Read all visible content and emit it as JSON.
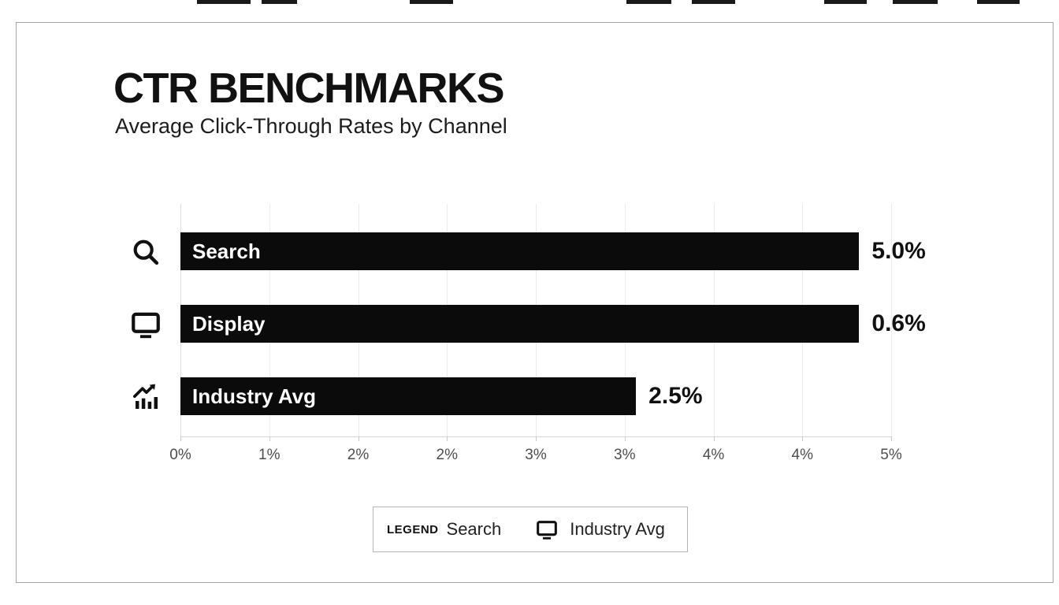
{
  "header": {
    "title": "CTR BENCHMARKS",
    "subtitle": "Average Click-Through Rates by Channel"
  },
  "chart_data": {
    "type": "bar",
    "orientation": "horizontal",
    "title": "CTR BENCHMARKS",
    "subtitle": "Average Click-Through Rates by Channel",
    "categories": [
      "Search",
      "Display",
      "Industry Avg"
    ],
    "values": [
      5.0,
      0.6,
      2.5
    ],
    "value_labels": [
      "5.0%",
      "0.6%",
      "2.5%"
    ],
    "row_icons": [
      "magnifier-icon",
      "monitor-icon",
      "trend-chart-icon"
    ],
    "x_tick_labels": [
      "0%",
      "1%",
      "2%",
      "2%",
      "3%",
      "3%",
      "4%",
      "4%",
      "5%"
    ],
    "xlim": [
      0,
      5
    ],
    "grid": true,
    "legend_position": "bottom-center",
    "bar_color": "#0b0b0b",
    "bar_text_color": "#ffffff",
    "bar_display_pct": [
      95.5,
      95.5,
      64.1
    ]
  },
  "legend": {
    "label": "LEGEND",
    "items": [
      {
        "text": "Search"
      },
      {
        "text": "Industry Avg",
        "icon": "monitor-icon"
      }
    ]
  }
}
